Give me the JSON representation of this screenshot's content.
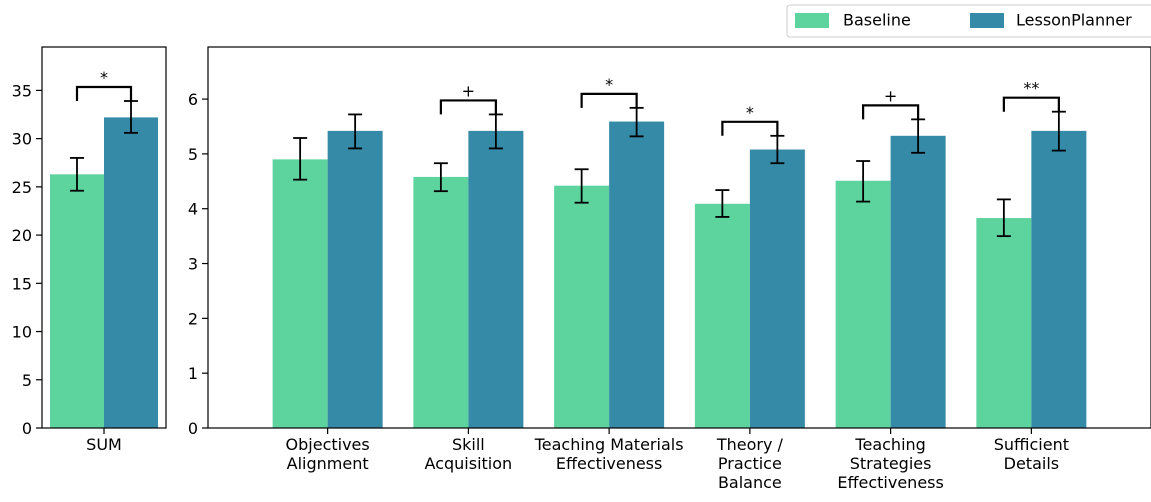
{
  "chart_data": [
    {
      "type": "bar",
      "categories": [
        "SUM"
      ],
      "series": [
        {
          "name": "Baseline",
          "values": [
            26.3
          ],
          "errors": [
            [
              24.6,
              28.0
            ]
          ]
        },
        {
          "name": "LessonPlanner",
          "values": [
            32.2
          ],
          "errors": [
            [
              30.6,
              33.9
            ]
          ]
        }
      ],
      "significance": [
        "*"
      ],
      "ylim": [
        0,
        39.5
      ],
      "yticks": [
        0,
        5,
        10,
        15,
        20,
        25,
        30,
        35
      ],
      "title": "",
      "xlabel": "",
      "ylabel": ""
    },
    {
      "type": "bar",
      "categories": [
        "Objectives\nAlignment",
        "Skill\nAcquisition",
        "Teaching Materials\nEffectiveness",
        "Theory /\nPractice\nBalance",
        "Teaching\nStrategies\nEffectiveness",
        "Sufficient\nDetails"
      ],
      "series": [
        {
          "name": "Baseline",
          "values": [
            4.9,
            4.58,
            4.42,
            4.09,
            4.51,
            3.83
          ],
          "errors": [
            [
              4.53,
              5.29
            ],
            [
              4.32,
              4.83
            ],
            [
              4.11,
              4.72
            ],
            [
              3.85,
              4.34
            ],
            [
              4.13,
              4.87
            ],
            [
              3.5,
              4.17
            ]
          ]
        },
        {
          "name": "LessonPlanner",
          "values": [
            5.42,
            5.42,
            5.59,
            5.08,
            5.33,
            5.42
          ],
          "errors": [
            [
              5.1,
              5.72
            ],
            [
              5.1,
              5.72
            ],
            [
              5.32,
              5.84
            ],
            [
              4.83,
              5.33
            ],
            [
              5.02,
              5.63
            ],
            [
              5.06,
              5.77
            ]
          ]
        }
      ],
      "significance": [
        "",
        "+",
        "*",
        "*",
        "+",
        "**"
      ],
      "ylim": [
        0,
        6.95
      ],
      "yticks": [
        0,
        1,
        2,
        3,
        4,
        5,
        6
      ],
      "title": "",
      "xlabel": "",
      "ylabel": ""
    }
  ],
  "legend": {
    "placement": "top-right",
    "items": [
      {
        "label": "Baseline",
        "color": "#5dd39e"
      },
      {
        "label": "LessonPlanner",
        "color": "#348aa7"
      }
    ]
  }
}
